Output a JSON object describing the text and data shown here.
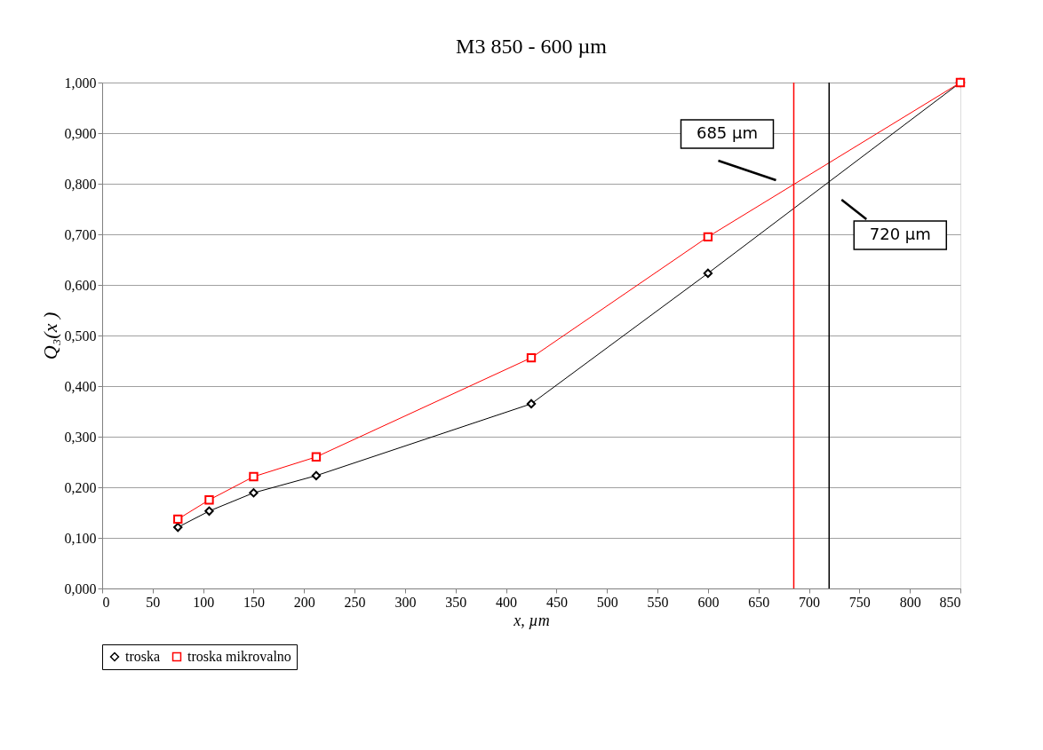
{
  "chart_data": {
    "type": "line",
    "title": "M3 850 - 600 µm",
    "xlabel": "x, µm",
    "ylabel": "Q₃(x )",
    "x": [
      75,
      106,
      150,
      212,
      425,
      600,
      850
    ],
    "series": [
      {
        "name": "troska",
        "color": "#000000",
        "marker": "diamond",
        "values": [
          0.121,
          0.153,
          0.189,
          0.223,
          0.365,
          0.623,
          1.0
        ]
      },
      {
        "name": "troska mikrovalno",
        "color": "#ff0000",
        "marker": "square",
        "values": [
          0.137,
          0.175,
          0.221,
          0.26,
          0.456,
          0.695,
          1.0
        ]
      }
    ],
    "xlim": [
      0,
      850
    ],
    "xticks": [
      0,
      50,
      100,
      150,
      200,
      250,
      300,
      350,
      400,
      450,
      500,
      550,
      600,
      650,
      700,
      750,
      800,
      850
    ],
    "ylim": [
      0,
      1
    ],
    "yticks": [
      {
        "value": 0,
        "label": "0,000"
      },
      {
        "value": 0.1,
        "label": "0,100"
      },
      {
        "value": 0.2,
        "label": "0,200"
      },
      {
        "value": 0.3,
        "label": "0,300"
      },
      {
        "value": 0.4,
        "label": "0,400"
      },
      {
        "value": 0.5,
        "label": "0,500"
      },
      {
        "value": 0.6,
        "label": "0,600"
      },
      {
        "value": 0.7,
        "label": "0,700"
      },
      {
        "value": 0.8,
        "label": "0,800"
      },
      {
        "value": 0.9,
        "label": "0,900"
      },
      {
        "value": 1,
        "label": "1,000"
      }
    ],
    "ref_lines": [
      {
        "axis": "x",
        "value": 685,
        "label": "685 µm",
        "color": "#ff0000"
      },
      {
        "axis": "x",
        "value": 720,
        "label": "720 µm",
        "color": "#000000"
      }
    ],
    "grid": "y",
    "legend": "bottom",
    "line_style": "solid"
  }
}
